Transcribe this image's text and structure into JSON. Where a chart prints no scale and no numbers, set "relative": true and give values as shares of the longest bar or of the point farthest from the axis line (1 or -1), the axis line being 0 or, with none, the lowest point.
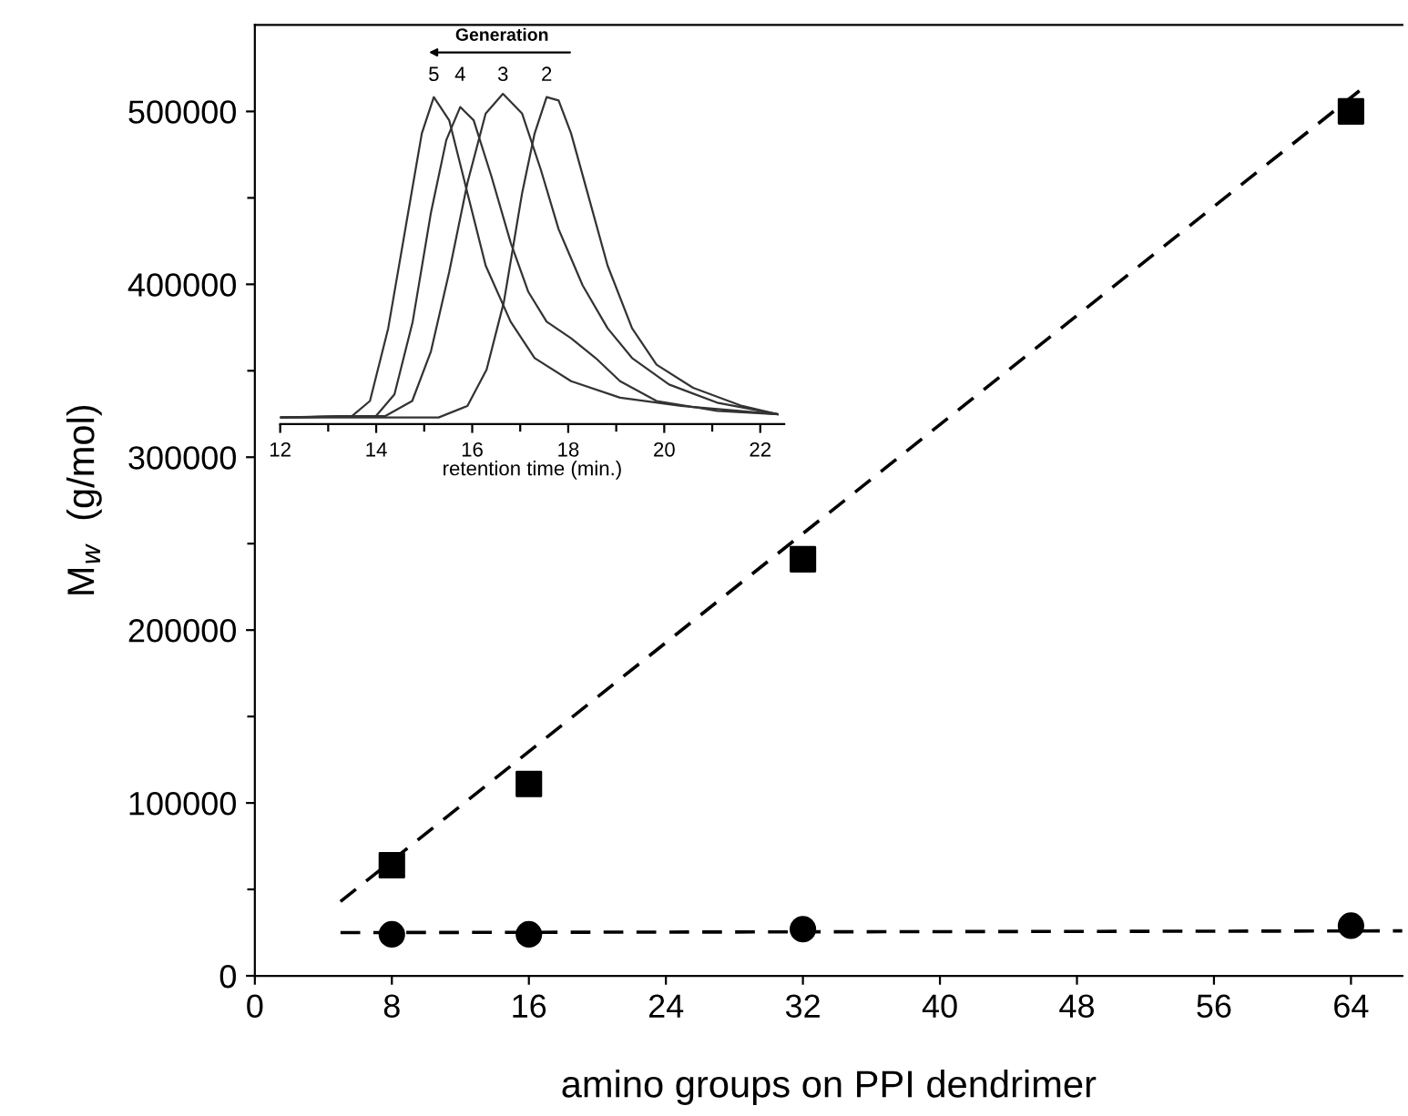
{
  "chart_data": [
    {
      "type": "scatter",
      "xlabel": "amino groups on PPI dendrimer",
      "ylabel": "M$_{w}$  (g/mol)",
      "xlim": [
        0,
        67
      ],
      "xticks": [
        0,
        8,
        16,
        24,
        32,
        40,
        48,
        56,
        64
      ],
      "ylim": [
        0,
        550000
      ],
      "yticks": [
        0,
        {
          "value": 50000,
          "label": null
        },
        100000,
        {
          "value": 150000,
          "label": null
        },
        200000,
        {
          "value": 250000,
          "label": null
        },
        300000,
        {
          "value": 350000,
          "label": null
        },
        400000,
        {
          "value": 450000,
          "label": null
        },
        500000
      ],
      "grid": false,
      "legend": false,
      "series": [
        {
          "type": "scatter",
          "marker": "square",
          "color": "#000000",
          "x": [
            8,
            16,
            32,
            64
          ],
          "values": [
            64000,
            111000,
            241000,
            500000
          ]
        },
        {
          "type": "scatter",
          "marker": "circle",
          "color": "#000000",
          "x": [
            8,
            16,
            32,
            64
          ],
          "values": [
            24000,
            24000,
            27000,
            29000
          ]
        },
        {
          "type": "line",
          "marker": "none",
          "line_style": "dashed",
          "color": "#000000",
          "x": [
            5,
            64.5
          ],
          "values": [
            43000,
            512000
          ]
        },
        {
          "type": "line",
          "marker": "none",
          "line_style": "dashed",
          "color": "#000000",
          "x": [
            5,
            67
          ],
          "values": [
            25000,
            26000
          ]
        }
      ]
    },
    {
      "type": "line",
      "relative": true,
      "xlabel": "retention time (min.)",
      "xlim": [
        12,
        22.5
      ],
      "xticks": [
        12,
        {
          "value": 13,
          "label": null
        },
        14,
        {
          "value": 15,
          "label": null
        },
        16,
        {
          "value": 17,
          "label": null
        },
        18,
        {
          "value": 19,
          "label": null
        },
        20,
        {
          "value": 21,
          "label": null
        },
        22
      ],
      "tick_labels": "x",
      "grid": false,
      "legend": false,
      "marker": "none",
      "line_style": "solid",
      "annotations": [
        "Generation"
      ],
      "series": [
        {
          "name": "5",
          "color": "#333333",
          "x": [
            12,
            13.5,
            13.87,
            14.25,
            14.63,
            14.95,
            15.2,
            15.52,
            15.9,
            16.28,
            16.8,
            17.3,
            18.06,
            19.08,
            20.35,
            22.36
          ],
          "values": [
            0.02,
            0.025,
            0.07,
            0.29,
            0.61,
            0.88,
            0.99,
            0.92,
            0.7,
            0.48,
            0.31,
            0.2,
            0.13,
            0.08,
            0.055,
            0.03
          ]
        },
        {
          "name": "4",
          "color": "#333333",
          "x": [
            12,
            14,
            14.38,
            14.76,
            15.14,
            15.46,
            15.75,
            16.03,
            16.4,
            16.8,
            17.17,
            17.55,
            18.06,
            18.57,
            19.08,
            19.84,
            21.1,
            22.36
          ],
          "values": [
            0.02,
            0.025,
            0.09,
            0.31,
            0.64,
            0.86,
            0.96,
            0.92,
            0.75,
            0.55,
            0.4,
            0.31,
            0.26,
            0.2,
            0.13,
            0.07,
            0.04,
            0.03
          ]
        },
        {
          "name": "3",
          "color": "#333333",
          "x": [
            12,
            14.2,
            14.75,
            15.14,
            15.52,
            15.9,
            16.28,
            16.64,
            17.04,
            17.43,
            17.8,
            18.3,
            18.82,
            19.33,
            20.1,
            21.1,
            22.36
          ],
          "values": [
            0.02,
            0.025,
            0.07,
            0.22,
            0.46,
            0.73,
            0.94,
            1.0,
            0.94,
            0.77,
            0.59,
            0.42,
            0.29,
            0.2,
            0.12,
            0.065,
            0.03
          ]
        },
        {
          "name": "2",
          "color": "#333333",
          "x": [
            12,
            15.3,
            15.9,
            16.3,
            16.66,
            17.04,
            17.3,
            17.55,
            17.8,
            18.06,
            18.44,
            18.82,
            19.33,
            19.84,
            20.6,
            21.62,
            22.36
          ],
          "values": [
            0.02,
            0.02,
            0.055,
            0.165,
            0.37,
            0.7,
            0.88,
            0.99,
            0.98,
            0.88,
            0.68,
            0.48,
            0.29,
            0.18,
            0.11,
            0.055,
            0.03
          ]
        }
      ]
    }
  ]
}
